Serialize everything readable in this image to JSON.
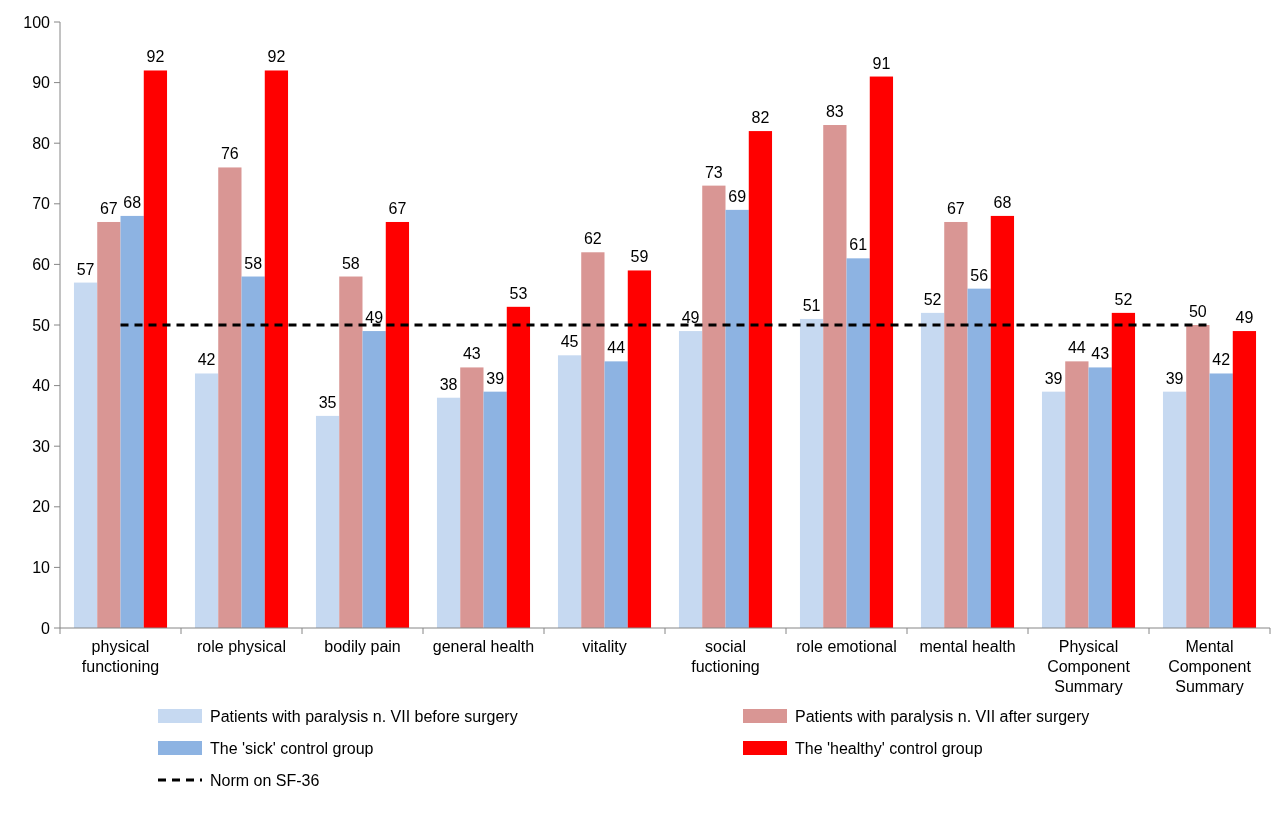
{
  "chart_data": {
    "type": "bar",
    "categories": [
      "physical functioning",
      "role physical",
      "bodily pain",
      "general health",
      "vitality",
      "social fuctioning",
      "role emotional",
      "mental health",
      "Physical Component Summary",
      "Mental Component Summary"
    ],
    "series": [
      {
        "name": "Patients with paralysis n. VII before surgery",
        "color": "#c6d9f1",
        "values": [
          57,
          42,
          35,
          38,
          45,
          49,
          51,
          52,
          39,
          39
        ]
      },
      {
        "name": "Patients with paralysis n. VII after surgery",
        "color": "#d99694",
        "values": [
          67,
          76,
          58,
          43,
          62,
          73,
          83,
          67,
          44,
          50
        ]
      },
      {
        "name": "The 'sick' control group",
        "color": "#8db3e2",
        "values": [
          68,
          58,
          49,
          39,
          44,
          69,
          61,
          56,
          43,
          42
        ]
      },
      {
        "name": "The 'healthy' control group",
        "color": "#ff0000",
        "values": [
          92,
          92,
          67,
          53,
          59,
          82,
          91,
          68,
          52,
          49
        ]
      }
    ],
    "ylim": [
      0,
      100
    ],
    "yticks": [
      0,
      10,
      20,
      30,
      40,
      50,
      60,
      70,
      80,
      90,
      100
    ],
    "data_labels": true,
    "legend": "bottom",
    "ref_lines": [
      {
        "axis": "y",
        "value": 50,
        "label": "Norm on SF-36",
        "color": "#000000",
        "line_style": "dashed"
      }
    ]
  }
}
